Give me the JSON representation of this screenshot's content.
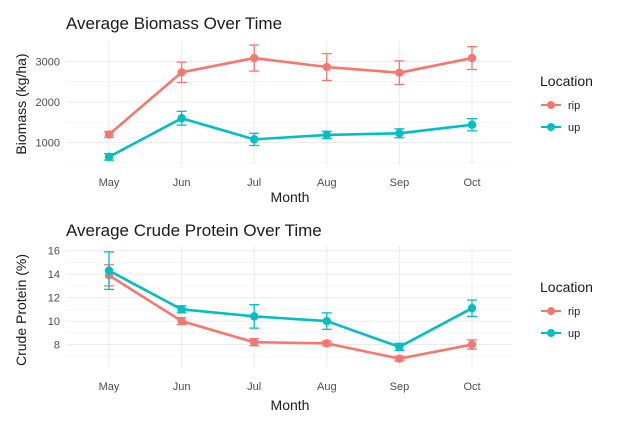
{
  "chart_data": [
    {
      "type": "line",
      "title": "Average Biomass Over Time",
      "xlabel": "Month",
      "ylabel": "Biomass (kg/ha)",
      "categories": [
        "May",
        "Jun",
        "Jul",
        "Aug",
        "Sep",
        "Oct"
      ],
      "ylim": [
        450,
        3500
      ],
      "yticks": [
        1000,
        2000,
        3000
      ],
      "grid": true,
      "legend": {
        "title": "Location",
        "position": "right"
      },
      "series": [
        {
          "name": "rip",
          "color": "#F8766D",
          "values": [
            1200,
            2730,
            3080,
            2860,
            2720,
            3080
          ],
          "error": [
            70,
            250,
            320,
            330,
            290,
            280
          ]
        },
        {
          "name": "up",
          "color": "#00BFC4",
          "values": [
            650,
            1600,
            1080,
            1190,
            1230,
            1440
          ],
          "error": [
            80,
            170,
            150,
            90,
            110,
            150
          ]
        }
      ]
    },
    {
      "type": "line",
      "title": "Average Crude Protein Over Time",
      "xlabel": "Month",
      "ylabel": "Crude Protein (%)",
      "categories": [
        "May",
        "Jun",
        "Jul",
        "Aug",
        "Sep",
        "Oct"
      ],
      "ylim": [
        6.0,
        16.4
      ],
      "yticks": [
        8,
        10,
        12,
        14,
        16
      ],
      "grid": true,
      "legend": {
        "title": "Location",
        "position": "right"
      },
      "series": [
        {
          "name": "rip",
          "color": "#F8766D",
          "values": [
            13.9,
            10.0,
            8.2,
            8.1,
            6.8,
            8.0
          ],
          "error": [
            0.9,
            0.3,
            0.3,
            0.2,
            0.2,
            0.4
          ]
        },
        {
          "name": "up",
          "color": "#00BFC4",
          "values": [
            14.3,
            11.0,
            10.4,
            10.0,
            7.8,
            11.1
          ],
          "error": [
            1.6,
            0.3,
            1.0,
            0.7,
            0.3,
            0.7
          ]
        }
      ]
    }
  ]
}
